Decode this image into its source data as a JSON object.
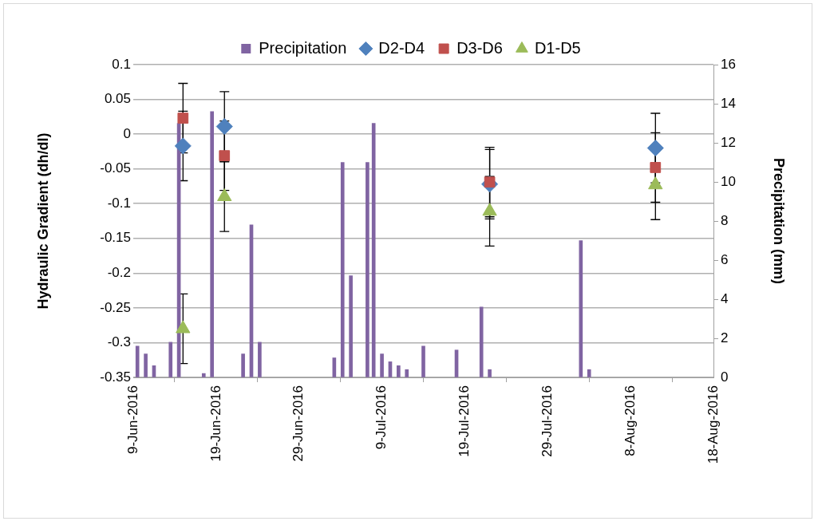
{
  "chart_data": {
    "type": "scatter",
    "xlim": [
      "2016-06-09",
      "2016-08-18"
    ],
    "xticks": [
      {
        "value": "2016-06-09",
        "label": "9-Jun-2016"
      },
      {
        "value": "2016-06-19",
        "label": "19-Jun-2016"
      },
      {
        "value": "2016-06-29",
        "label": "29-Jun-2016"
      },
      {
        "value": "2016-07-09",
        "label": "9-Jul-2016"
      },
      {
        "value": "2016-07-19",
        "label": "19-Jul-2016"
      },
      {
        "value": "2016-07-29",
        "label": "29-Jul-2016"
      },
      {
        "value": "2016-08-08",
        "label": "8-Aug-2016"
      },
      {
        "value": "2016-08-18",
        "label": "18-Aug-2016"
      }
    ],
    "ylabel": "Hydraulic Gradient (dh/dl)",
    "y2label": "Precipitation (mm)",
    "ylim": [
      -0.35,
      0.1
    ],
    "yticks": [
      -0.35,
      -0.3,
      -0.25,
      -0.2,
      -0.15,
      -0.1,
      -0.05,
      0,
      0.05,
      0.1
    ],
    "y2lim": [
      0,
      16
    ],
    "y2ticks": [
      0,
      2,
      4,
      6,
      8,
      10,
      12,
      14,
      16
    ],
    "grid": "y",
    "legend": "top",
    "series": [
      {
        "name": "Precipitation",
        "type": "bar",
        "axis": "y2",
        "color": "#8064a2",
        "x": [
          "2016-06-09T12:00",
          "2016-06-10T12:00",
          "2016-06-11T12:00",
          "2016-06-13T12:00",
          "2016-06-14T12:00",
          "2016-06-17T12:00",
          "2016-06-18T12:00",
          "2016-06-22T06:00",
          "2016-06-23T06:00",
          "2016-06-24T06:00",
          "2016-07-03T06:00",
          "2016-07-04T06:00",
          "2016-07-05T06:00",
          "2016-07-07T06:00",
          "2016-07-08",
          "2016-07-09",
          "2016-07-10",
          "2016-07-11",
          "2016-07-12",
          "2016-07-14",
          "2016-07-18",
          "2016-07-21",
          "2016-07-22",
          "2016-08-02",
          "2016-08-03"
        ],
        "values": [
          1.6,
          1.2,
          0.6,
          1.8,
          13,
          0.2,
          13.6,
          1.2,
          7.8,
          1.8,
          1.0,
          11.0,
          5.2,
          11.0,
          13.0,
          1.2,
          0.8,
          0.6,
          0.4,
          1.6,
          1.4,
          3.6,
          0.4,
          7.0,
          0.4
        ]
      },
      {
        "name": "D2-D4",
        "marker": "diamond",
        "color": "#4f81bd",
        "x": [
          "2016-06-15",
          "2016-06-20",
          "2016-07-22",
          "2016-08-11"
        ],
        "values": [
          -0.017,
          0.011,
          -0.072,
          -0.02
        ],
        "errors": [
          0.05,
          0.05,
          0.05,
          0.05
        ]
      },
      {
        "name": "D3-D6",
        "marker": "square",
        "color": "#c0504d",
        "x": [
          "2016-06-15",
          "2016-06-20",
          "2016-07-22",
          "2016-08-11"
        ],
        "values": [
          0.023,
          -0.031,
          -0.069,
          -0.048
        ],
        "errors": [
          0.05,
          0.05,
          0.05,
          0.05
        ]
      },
      {
        "name": "D1-D5",
        "marker": "triangle",
        "color": "#9bbb59",
        "x": [
          "2016-06-15",
          "2016-06-20",
          "2016-07-22",
          "2016-08-11"
        ],
        "values": [
          -0.28,
          -0.09,
          -0.111,
          -0.073
        ],
        "errors": [
          0.05,
          0.05,
          0.05,
          0.05
        ]
      }
    ]
  }
}
